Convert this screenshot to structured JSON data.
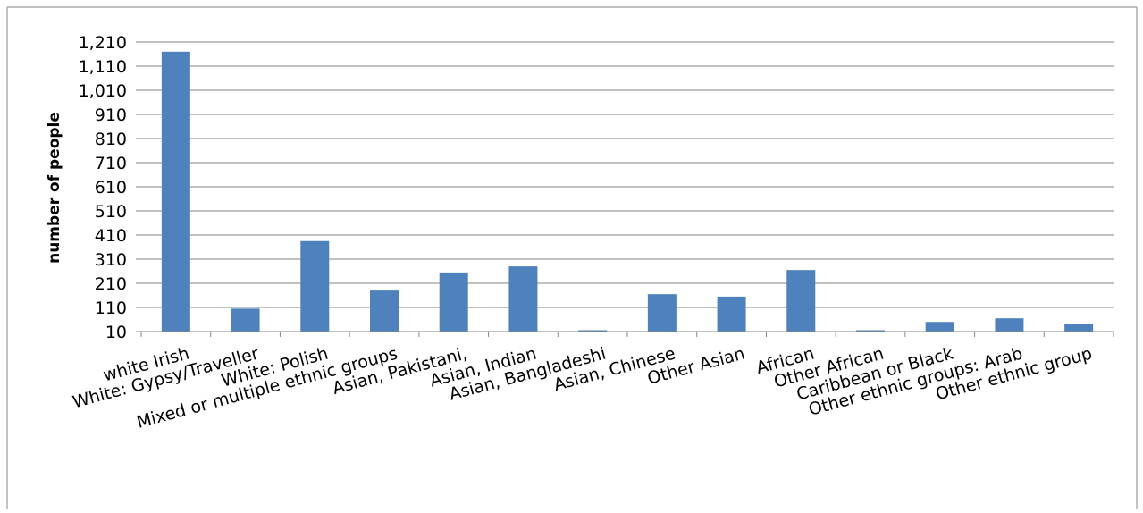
{
  "chart_data": {
    "type": "bar",
    "title": "",
    "xlabel": "",
    "ylabel": "number of people",
    "ylim": [
      10,
      1210
    ],
    "yticks": [
      10,
      110,
      210,
      310,
      410,
      510,
      610,
      710,
      810,
      910,
      1010,
      1110,
      1210
    ],
    "ytick_labels": [
      "10",
      "110",
      "210",
      "310",
      "410",
      "510",
      "610",
      "710",
      "810",
      "910",
      "1,010",
      "1,110",
      "1,210"
    ],
    "grid": true,
    "legend": "none",
    "categories": [
      "white Irish",
      "White: Gypsy/Traveller",
      "White: Polish",
      "Mixed or multiple ethnic groups",
      "Asian, Pakistani,",
      "Asian,  Indian",
      "Asian,  Bangladeshi",
      "Asian, Chinese",
      "Other Asian",
      "African",
      "Other African",
      "Caribbean or Black",
      "Other ethnic groups: Arab",
      "Other ethnic group"
    ],
    "values": [
      1170,
      105,
      385,
      180,
      255,
      280,
      15,
      165,
      155,
      265,
      15,
      50,
      65,
      40
    ],
    "colors": {
      "bar": "#4f81bd",
      "grid": "#868686",
      "axis": "#868686",
      "border": "#868686"
    }
  }
}
